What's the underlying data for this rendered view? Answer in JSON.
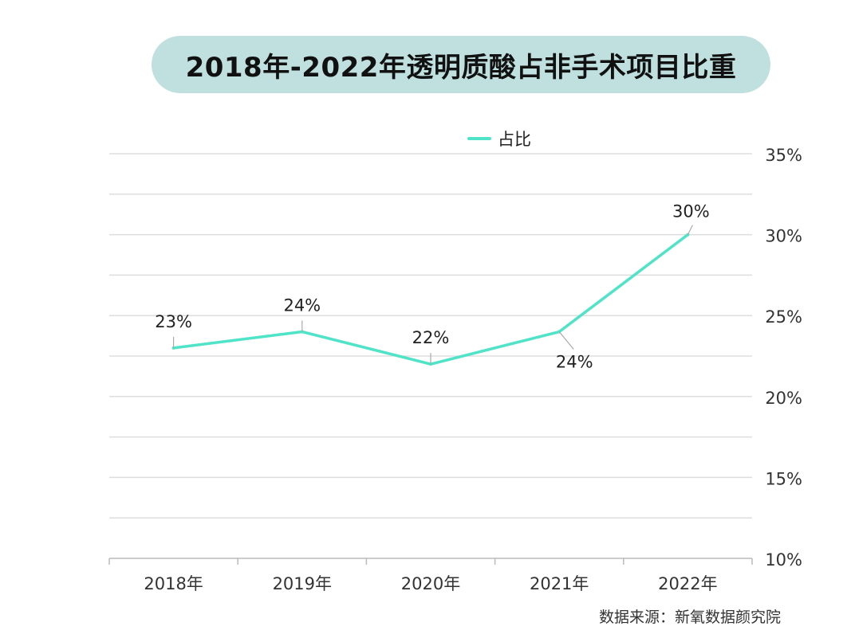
{
  "title": "2018年-2022年透明质酸占非手术项目比重",
  "source": "数据来源：新氧数据颜究院",
  "colors": {
    "line": "#4fe3c7",
    "title_bg": "#bfe0df",
    "grid": "#dddddd"
  },
  "legend": {
    "label": "占比",
    "placement": "top-center"
  },
  "chart_data": {
    "type": "line",
    "title": "2018年-2022年透明质酸占非手术项目比重",
    "categories": [
      "2018年",
      "2019年",
      "2020年",
      "2021年",
      "2022年"
    ],
    "series": [
      {
        "name": "占比",
        "values": [
          23,
          24,
          22,
          24,
          30
        ],
        "labels": [
          "23%",
          "24%",
          "22%",
          "24%",
          "30%"
        ]
      }
    ],
    "y_ticks": [
      "10%",
      "15%",
      "20%",
      "25%",
      "30%",
      "35%"
    ],
    "ylim": [
      10,
      35
    ],
    "y_axis_side": "right",
    "grid": true,
    "xlabel": "",
    "ylabel": ""
  }
}
